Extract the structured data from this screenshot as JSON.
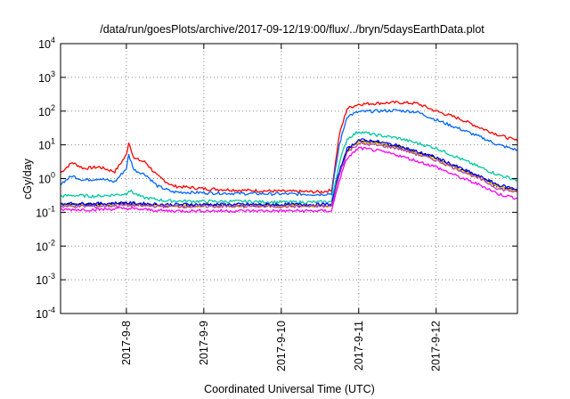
{
  "chart_data": {
    "type": "line",
    "title": "/data/run/goesPlots/archive/2017-09-12/19:00/flux/../bryn/5daysEarthData.plot",
    "xlabel": "Coordinated Universal Time (UTC)",
    "ylabel": "cGy/day",
    "y_scale": "log",
    "ylim": [
      0.0001,
      10000
    ],
    "xlim": [
      -0.85,
      5.05
    ],
    "y_ticks": [
      {
        "base": "10",
        "exp": "-4"
      },
      {
        "base": "10",
        "exp": "-3"
      },
      {
        "base": "10",
        "exp": "-2"
      },
      {
        "base": "10",
        "exp": "-1"
      },
      {
        "base": "10",
        "exp": "0"
      },
      {
        "base": "10",
        "exp": "1"
      },
      {
        "base": "10",
        "exp": "2"
      },
      {
        "base": "10",
        "exp": "3"
      },
      {
        "base": "10",
        "exp": "4"
      }
    ],
    "x_ticks": [
      "2017-9-8",
      "2017-9-9",
      "2017-9-10",
      "2017-9-11",
      "2017-9-12"
    ],
    "x_tick_values": [
      0,
      1,
      2,
      3,
      4
    ],
    "grid": "dotted",
    "x_units": "days since 2017-9-8 00:00 UTC",
    "series": [
      {
        "color": "#ff0000",
        "values": [
          [
            -0.85,
            1.5
          ],
          [
            -0.7,
            3.0
          ],
          [
            -0.55,
            2.0
          ],
          [
            -0.35,
            2.2
          ],
          [
            -0.15,
            1.6
          ],
          [
            0.0,
            5.0
          ],
          [
            0.03,
            12
          ],
          [
            0.1,
            4.0
          ],
          [
            0.25,
            3.0
          ],
          [
            0.4,
            1.2
          ],
          [
            0.6,
            0.6
          ],
          [
            1.0,
            0.5
          ],
          [
            1.5,
            0.45
          ],
          [
            2.0,
            0.42
          ],
          [
            2.5,
            0.4
          ],
          [
            2.65,
            0.45
          ],
          [
            2.75,
            20
          ],
          [
            2.85,
            120
          ],
          [
            3.0,
            160
          ],
          [
            3.2,
            170
          ],
          [
            3.5,
            180
          ],
          [
            3.75,
            170
          ],
          [
            4.0,
            100
          ],
          [
            4.3,
            60
          ],
          [
            4.6,
            30
          ],
          [
            4.8,
            20
          ],
          [
            5.05,
            13
          ]
        ]
      },
      {
        "color": "#0066ff",
        "values": [
          [
            -0.85,
            0.7
          ],
          [
            -0.7,
            1.2
          ],
          [
            -0.55,
            0.9
          ],
          [
            -0.35,
            1.0
          ],
          [
            -0.15,
            0.8
          ],
          [
            0.0,
            2.0
          ],
          [
            0.03,
            5.0
          ],
          [
            0.1,
            1.8
          ],
          [
            0.25,
            1.3
          ],
          [
            0.4,
            0.6
          ],
          [
            0.6,
            0.4
          ],
          [
            1.0,
            0.38
          ],
          [
            1.5,
            0.36
          ],
          [
            2.0,
            0.35
          ],
          [
            2.5,
            0.34
          ],
          [
            2.65,
            0.36
          ],
          [
            2.75,
            10
          ],
          [
            2.85,
            70
          ],
          [
            3.0,
            95
          ],
          [
            3.2,
            100
          ],
          [
            3.5,
            105
          ],
          [
            3.75,
            95
          ],
          [
            4.0,
            55
          ],
          [
            4.3,
            30
          ],
          [
            4.6,
            16
          ],
          [
            4.8,
            10
          ],
          [
            5.05,
            7
          ]
        ]
      },
      {
        "color": "#00c8a0",
        "values": [
          [
            -0.85,
            0.3
          ],
          [
            -0.7,
            0.32
          ],
          [
            -0.4,
            0.3
          ],
          [
            0.0,
            0.35
          ],
          [
            0.03,
            0.45
          ],
          [
            0.2,
            0.28
          ],
          [
            0.5,
            0.22
          ],
          [
            1.0,
            0.21
          ],
          [
            1.5,
            0.21
          ],
          [
            2.0,
            0.2
          ],
          [
            2.5,
            0.2
          ],
          [
            2.65,
            0.21
          ],
          [
            2.75,
            3.0
          ],
          [
            2.85,
            15
          ],
          [
            3.0,
            25
          ],
          [
            3.2,
            20
          ],
          [
            3.5,
            16
          ],
          [
            4.0,
            8.0
          ],
          [
            4.3,
            4.0
          ],
          [
            4.6,
            2.0
          ],
          [
            4.8,
            1.3
          ],
          [
            5.05,
            0.9
          ]
        ]
      },
      {
        "color": "#000000",
        "values": [
          [
            -0.85,
            0.17
          ],
          [
            -0.4,
            0.17
          ],
          [
            0.0,
            0.18
          ],
          [
            0.5,
            0.16
          ],
          [
            1.0,
            0.16
          ],
          [
            2.0,
            0.16
          ],
          [
            2.65,
            0.16
          ],
          [
            2.75,
            1.5
          ],
          [
            2.85,
            7.0
          ],
          [
            3.0,
            13
          ],
          [
            3.2,
            12
          ],
          [
            3.5,
            9.0
          ],
          [
            4.0,
            4.0
          ],
          [
            4.3,
            2.0
          ],
          [
            4.6,
            1.0
          ],
          [
            4.8,
            0.6
          ],
          [
            5.05,
            0.45
          ]
        ]
      },
      {
        "color": "#ffcc00",
        "values": [
          [
            -0.85,
            0.16
          ],
          [
            -0.4,
            0.16
          ],
          [
            0.0,
            0.17
          ],
          [
            0.5,
            0.155
          ],
          [
            1.0,
            0.155
          ],
          [
            2.0,
            0.155
          ],
          [
            2.65,
            0.155
          ],
          [
            2.75,
            1.4
          ],
          [
            2.85,
            6.5
          ],
          [
            3.0,
            12
          ],
          [
            3.2,
            11
          ],
          [
            3.5,
            8.5
          ],
          [
            4.0,
            3.8
          ],
          [
            4.3,
            1.9
          ],
          [
            4.6,
            0.95
          ],
          [
            4.8,
            0.55
          ],
          [
            5.05,
            0.42
          ]
        ]
      },
      {
        "color": "#0000ff",
        "values": [
          [
            -0.85,
            0.18
          ],
          [
            -0.4,
            0.18
          ],
          [
            0.0,
            0.19
          ],
          [
            0.5,
            0.17
          ],
          [
            1.0,
            0.17
          ],
          [
            2.0,
            0.17
          ],
          [
            2.65,
            0.17
          ],
          [
            2.75,
            1.6
          ],
          [
            2.85,
            7.5
          ],
          [
            3.0,
            14
          ],
          [
            3.2,
            13
          ],
          [
            3.5,
            9.5
          ],
          [
            4.0,
            4.2
          ],
          [
            4.3,
            2.1
          ],
          [
            4.6,
            1.05
          ],
          [
            4.8,
            0.65
          ],
          [
            5.05,
            0.48
          ]
        ]
      },
      {
        "color": "#aa44aa",
        "values": [
          [
            -0.85,
            0.15
          ],
          [
            -0.4,
            0.15
          ],
          [
            0.0,
            0.16
          ],
          [
            0.5,
            0.15
          ],
          [
            1.0,
            0.15
          ],
          [
            2.0,
            0.15
          ],
          [
            2.65,
            0.15
          ],
          [
            2.75,
            1.3
          ],
          [
            2.85,
            6.0
          ],
          [
            3.0,
            11
          ],
          [
            3.2,
            10
          ],
          [
            3.5,
            8.0
          ],
          [
            4.0,
            3.5
          ],
          [
            4.3,
            1.8
          ],
          [
            4.6,
            0.9
          ],
          [
            4.8,
            0.5
          ],
          [
            5.05,
            0.4
          ]
        ]
      },
      {
        "color": "#ff00ff",
        "values": [
          [
            -0.85,
            0.12
          ],
          [
            -0.4,
            0.12
          ],
          [
            0.0,
            0.13
          ],
          [
            0.5,
            0.11
          ],
          [
            1.0,
            0.11
          ],
          [
            2.0,
            0.11
          ],
          [
            2.65,
            0.11
          ],
          [
            2.75,
            0.9
          ],
          [
            2.85,
            4.0
          ],
          [
            3.0,
            8.0
          ],
          [
            3.2,
            7.0
          ],
          [
            3.5,
            5.0
          ],
          [
            4.0,
            2.2
          ],
          [
            4.3,
            1.1
          ],
          [
            4.6,
            0.6
          ],
          [
            4.8,
            0.35
          ],
          [
            5.05,
            0.26
          ]
        ]
      }
    ]
  }
}
